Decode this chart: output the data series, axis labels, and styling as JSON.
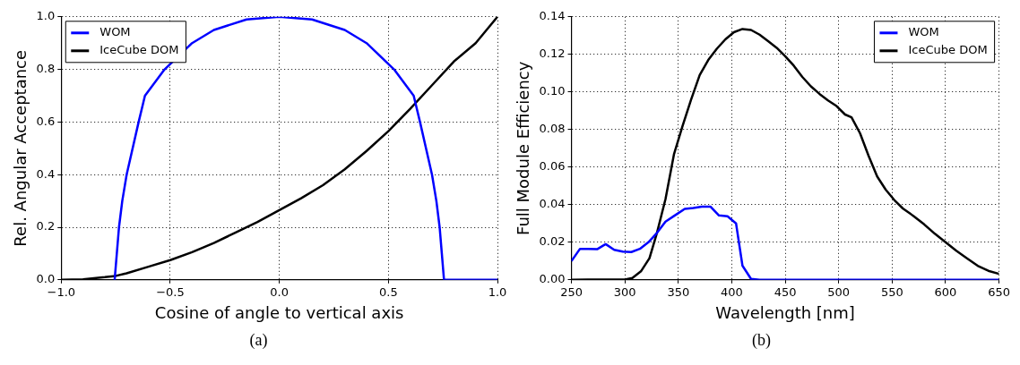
{
  "chart_data": [
    {
      "type": "line",
      "xlabel": "Cosine of angle to vertical axis",
      "ylabel": "Rel. Angular Acceptance",
      "annotations": [
        "(a)"
      ],
      "xlim": [
        -1,
        1
      ],
      "ylim": [
        0,
        1
      ],
      "xticks": [
        {
          "value": -1,
          "label": "−1.0"
        },
        {
          "value": -0.5,
          "label": "−0.5"
        },
        {
          "value": 0,
          "label": "0.0"
        },
        {
          "value": 0.5,
          "label": "0.5"
        },
        {
          "value": 1,
          "label": "1.0"
        }
      ],
      "yticks": [
        {
          "value": 0,
          "label": "0.0"
        },
        {
          "value": 0.2,
          "label": "0.2"
        },
        {
          "value": 0.4,
          "label": "0.4"
        },
        {
          "value": 0.6,
          "label": "0.6"
        },
        {
          "value": 0.8,
          "label": "0.8"
        },
        {
          "value": 1,
          "label": "1.0"
        }
      ],
      "grid": true,
      "legend": "top left",
      "line_style": "solid",
      "marker": "none",
      "series": [
        {
          "name": "WOM",
          "color": "#0000ff",
          "x": [
            -0.755,
            -0.745,
            -0.735,
            -0.72,
            -0.7,
            -0.645,
            -0.616,
            -0.526,
            -0.4,
            -0.3,
            -0.15,
            0,
            0.15,
            0.3,
            0.4,
            0.526,
            0.616,
            0.645,
            0.7,
            0.72,
            0.735,
            0.745,
            0.755,
            1
          ],
          "values": [
            0,
            0.1,
            0.2,
            0.3,
            0.4,
            0.6,
            0.7,
            0.8,
            0.9,
            0.95,
            0.99,
            1,
            0.99,
            0.95,
            0.9,
            0.8,
            0.7,
            0.6,
            0.4,
            0.3,
            0.2,
            0.1,
            0,
            0
          ]
        },
        {
          "name": "IceCube DOM",
          "color": "#000000",
          "x": [
            -1,
            -0.9,
            -0.8,
            -0.75,
            -0.7,
            -0.6,
            -0.5,
            -0.4,
            -0.3,
            -0.2,
            -0.1,
            0,
            0.1,
            0.2,
            0.3,
            0.4,
            0.5,
            0.6,
            0.7,
            0.8,
            0.9,
            0.95,
            1
          ],
          "values": [
            0,
            0.002,
            0.01,
            0.015,
            0.025,
            0.05,
            0.075,
            0.105,
            0.14,
            0.18,
            0.22,
            0.265,
            0.31,
            0.36,
            0.42,
            0.49,
            0.565,
            0.65,
            0.74,
            0.83,
            0.9,
            0.95,
            1
          ]
        }
      ]
    },
    {
      "type": "line",
      "xlabel": "Wavelength [nm]",
      "ylabel": "Full Module Efficiency",
      "annotations": [
        "(b)"
      ],
      "xlim": [
        250,
        650
      ],
      "ylim": [
        0,
        0.14
      ],
      "xticks": [
        250,
        300,
        350,
        400,
        450,
        500,
        550,
        600,
        650
      ],
      "yticks": [
        {
          "value": 0,
          "label": "0.00"
        },
        {
          "value": 0.02,
          "label": "0.02"
        },
        {
          "value": 0.04,
          "label": "0.04"
        },
        {
          "value": 0.06,
          "label": "0.06"
        },
        {
          "value": 0.08,
          "label": "0.08"
        },
        {
          "value": 0.1,
          "label": "0.10"
        },
        {
          "value": 0.12,
          "label": "0.12"
        },
        {
          "value": 0.14,
          "label": "0.14"
        }
      ],
      "grid": true,
      "legend": "top right",
      "line_style": "solid",
      "marker": "none",
      "series": [
        {
          "name": "WOM",
          "color": "#0000ff",
          "x": [
            250,
            258,
            266,
            274,
            282,
            290,
            298,
            306,
            314,
            322,
            330,
            338,
            346,
            356,
            364,
            372,
            380,
            388,
            396,
            404,
            410,
            418,
            426,
            650
          ],
          "values": [
            0.01,
            0.0165,
            0.0165,
            0.0163,
            0.019,
            0.016,
            0.015,
            0.0148,
            0.0165,
            0.02,
            0.025,
            0.031,
            0.034,
            0.0378,
            0.0382,
            0.039,
            0.039,
            0.0343,
            0.0338,
            0.03,
            0.0075,
            0.0005,
            0,
            0
          ]
        },
        {
          "name": "IceCube DOM",
          "color": "#000000",
          "x": [
            250,
            265,
            300,
            307,
            315,
            323,
            330,
            338,
            346,
            354,
            362,
            370,
            378,
            386,
            394,
            402,
            410,
            418,
            426,
            434,
            442,
            450,
            458,
            466,
            474,
            482,
            490,
            498,
            506,
            512,
            520,
            528,
            536,
            544,
            552,
            560,
            570,
            580,
            590,
            600,
            610,
            620,
            630,
            640,
            650
          ],
          "values": [
            0,
            0.0002,
            0.0002,
            0.001,
            0.0045,
            0.0115,
            0.025,
            0.043,
            0.067,
            0.082,
            0.096,
            0.109,
            0.117,
            0.123,
            0.128,
            0.1318,
            0.1335,
            0.133,
            0.1305,
            0.127,
            0.1235,
            0.119,
            0.114,
            0.108,
            0.103,
            0.099,
            0.0955,
            0.0925,
            0.088,
            0.0865,
            0.078,
            0.066,
            0.055,
            0.048,
            0.0425,
            0.038,
            0.034,
            0.0295,
            0.0245,
            0.02,
            0.0155,
            0.0115,
            0.0075,
            0.0048,
            0.0032
          ]
        }
      ]
    }
  ]
}
